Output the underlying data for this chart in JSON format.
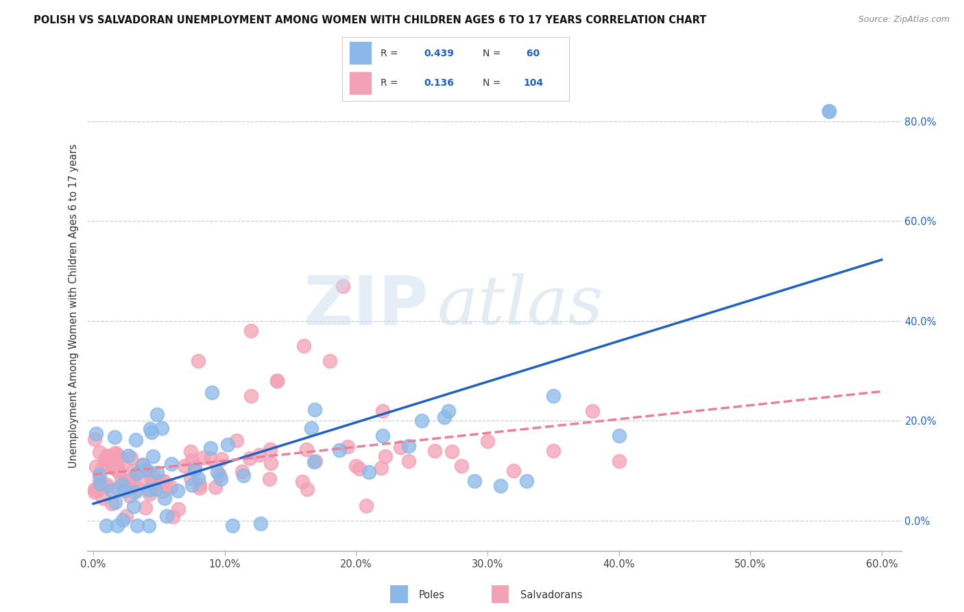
{
  "title": "POLISH VS SALVADORAN UNEMPLOYMENT AMONG WOMEN WITH CHILDREN AGES 6 TO 17 YEARS CORRELATION CHART",
  "source": "Source: ZipAtlas.com",
  "ylabel": "Unemployment Among Women with Children Ages 6 to 17 years",
  "poles_color": "#8ab8e8",
  "salvadorans_color": "#f4a0b5",
  "poles_line_color": "#2060c0",
  "salvadorans_line_color": "#e8809a",
  "legend_R_poles": "0.439",
  "legend_N_poles": "60",
  "legend_R_salvadorans": "0.136",
  "legend_N_salvadorans": "104",
  "x_tick_labels": [
    "0.0%",
    "10.0%",
    "20.0%",
    "30.0%",
    "40.0%",
    "50.0%",
    "60.0%"
  ],
  "y_tick_labels_right": [
    "0.0%",
    "20.0%",
    "40.0%",
    "60.0%",
    "80.0%"
  ],
  "text_color_blue": "#2060c0",
  "text_color_dark": "#333333",
  "grid_color": "#cccccc"
}
